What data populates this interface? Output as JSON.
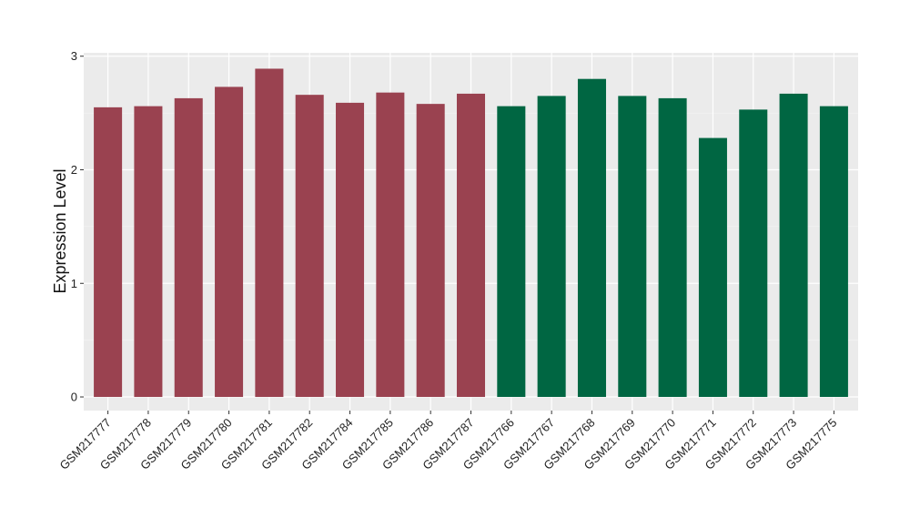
{
  "chart_data": {
    "type": "bar",
    "title": "",
    "xlabel": "",
    "ylabel": "Expression Level",
    "ylim": [
      -0.12,
      3.03
    ],
    "yticks": [
      0,
      1,
      2,
      3
    ],
    "grid": true,
    "background": "#EBEBEB",
    "categories": [
      "GSM217777",
      "GSM217778",
      "GSM217779",
      "GSM217780",
      "GSM217781",
      "GSM217782",
      "GSM217784",
      "GSM217785",
      "GSM217786",
      "GSM217787",
      "GSM217766",
      "GSM217767",
      "GSM217768",
      "GSM217769",
      "GSM217770",
      "GSM217771",
      "GSM217772",
      "GSM217773",
      "GSM217775"
    ],
    "values": [
      2.55,
      2.56,
      2.63,
      2.73,
      2.89,
      2.66,
      2.59,
      2.68,
      2.58,
      2.67,
      2.56,
      2.65,
      2.8,
      2.65,
      2.63,
      2.28,
      2.53,
      2.67,
      2.56
    ],
    "bar_colors": [
      "#9A4250",
      "#9A4250",
      "#9A4250",
      "#9A4250",
      "#9A4250",
      "#9A4250",
      "#9A4250",
      "#9A4250",
      "#9A4250",
      "#9A4250",
      "#006642",
      "#006642",
      "#006642",
      "#006642",
      "#006642",
      "#006642",
      "#006642",
      "#006642",
      "#006642"
    ]
  }
}
